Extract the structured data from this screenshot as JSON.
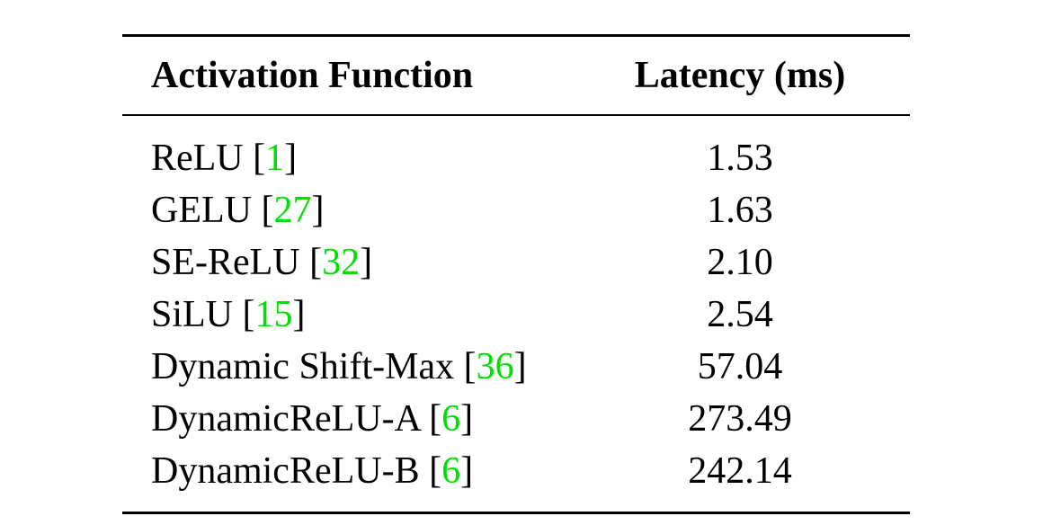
{
  "table": {
    "headers": {
      "activation": "Activation Function",
      "latency": "Latency (ms)"
    },
    "rows": [
      {
        "name": "ReLU",
        "ref": "1",
        "latency": "1.53"
      },
      {
        "name": "GELU",
        "ref": "27",
        "latency": "1.63"
      },
      {
        "name": "SE-ReLU",
        "ref": "32",
        "latency": "2.10"
      },
      {
        "name": "SiLU",
        "ref": "15",
        "latency": "2.54"
      },
      {
        "name": "Dynamic Shift-Max",
        "ref": "36",
        "latency": "57.04"
      },
      {
        "name": "DynamicReLU-A",
        "ref": "6",
        "latency": "273.49"
      },
      {
        "name": "DynamicReLU-B",
        "ref": "6",
        "latency": "242.14"
      }
    ]
  },
  "colors": {
    "citation": "#00e000"
  }
}
